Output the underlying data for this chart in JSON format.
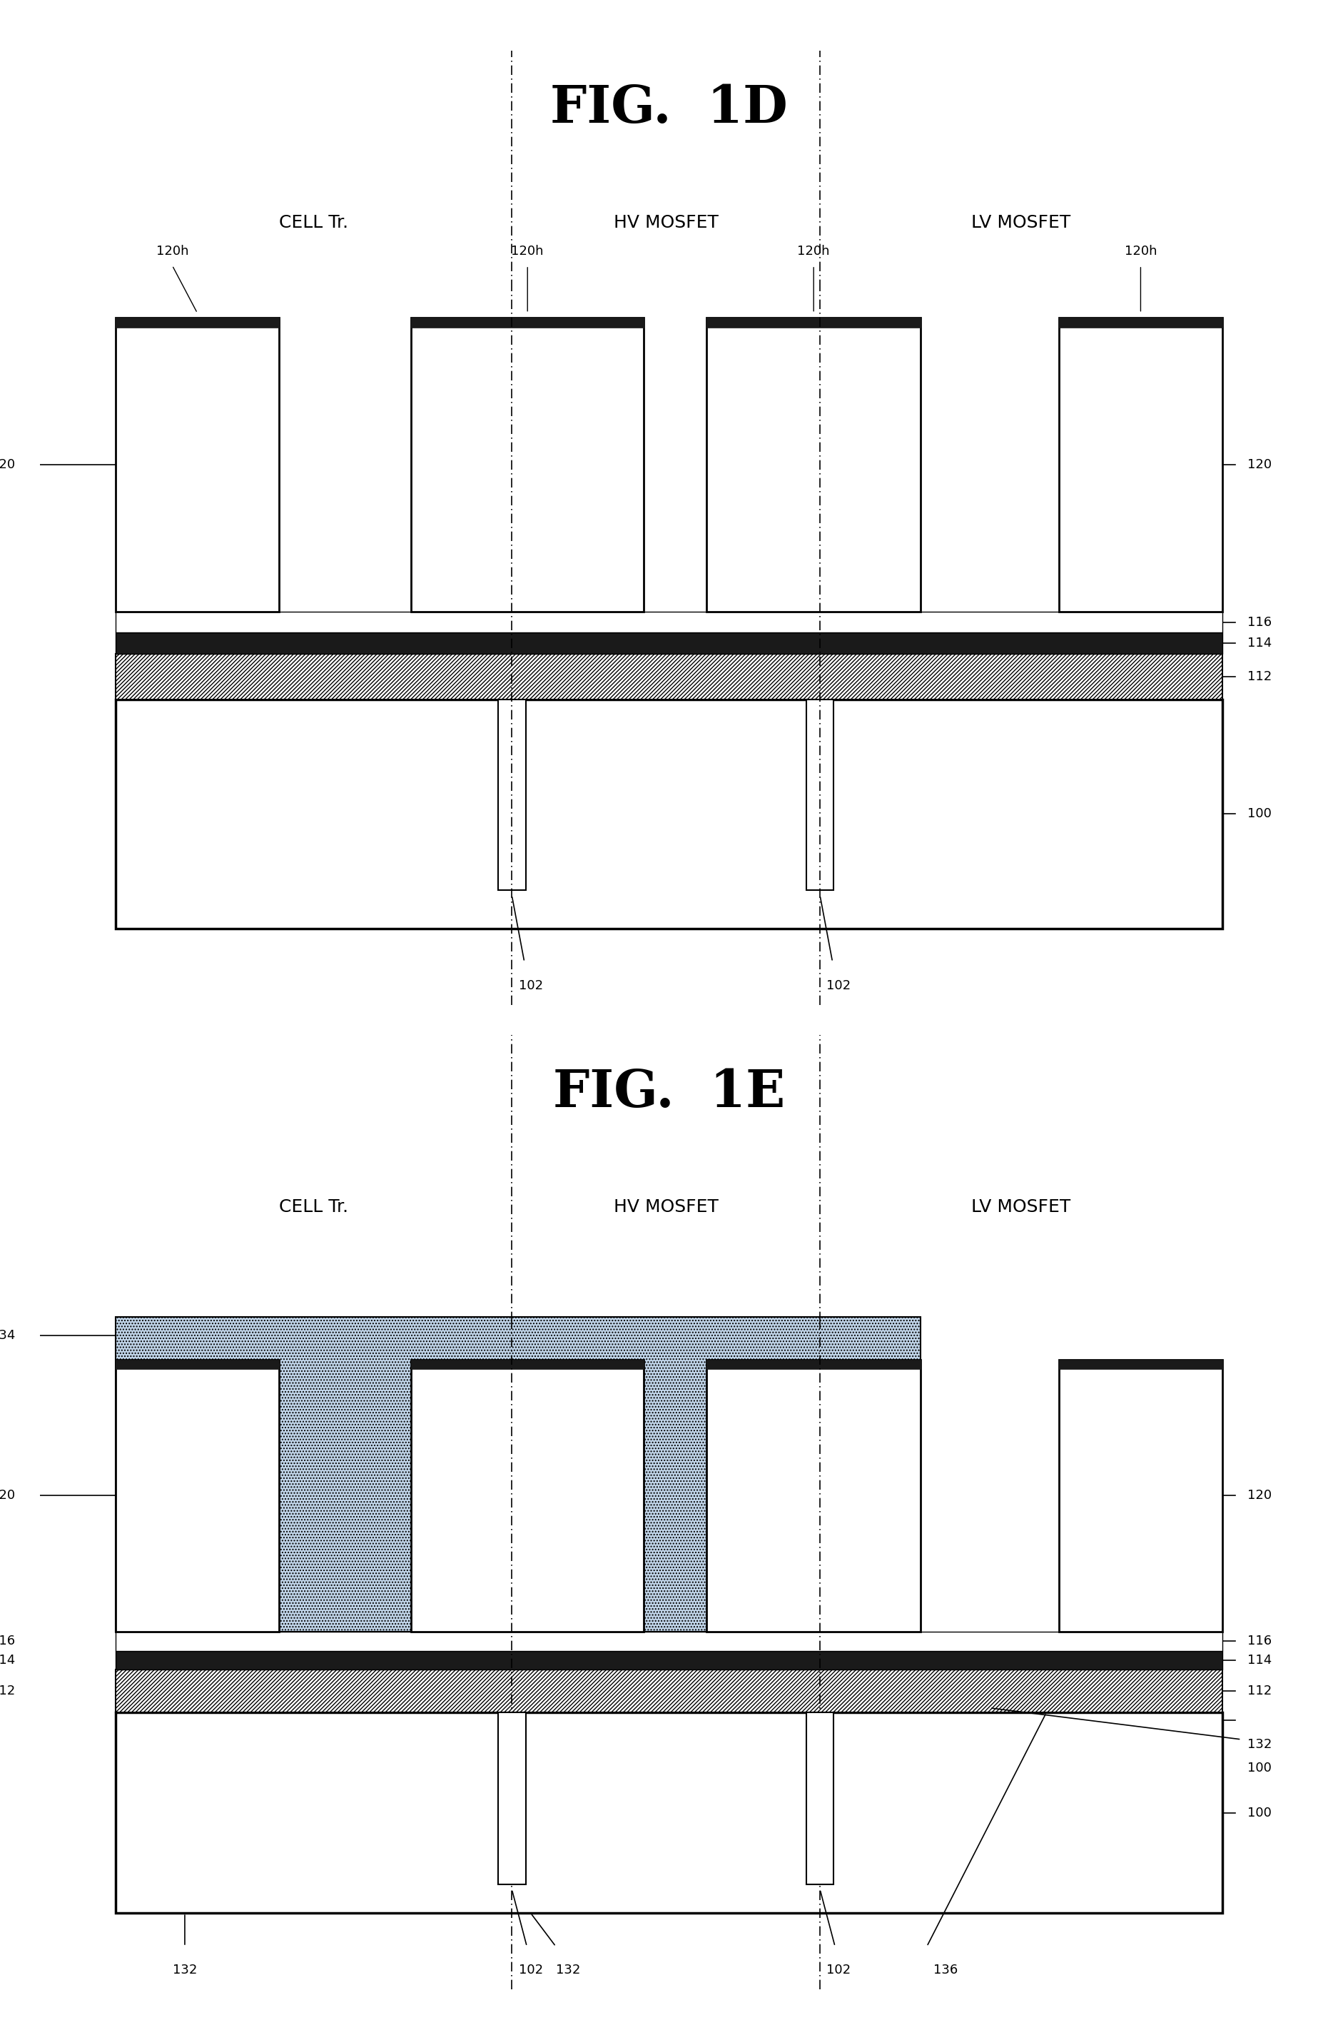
{
  "fig_title_1D": "FIG.  1D",
  "fig_title_1E": "FIG.  1E",
  "bg_color": "#ffffff",
  "labels": {
    "cell": "CELL Tr.",
    "hv": "HV MOSFET",
    "lv": "LV MOSFET"
  }
}
